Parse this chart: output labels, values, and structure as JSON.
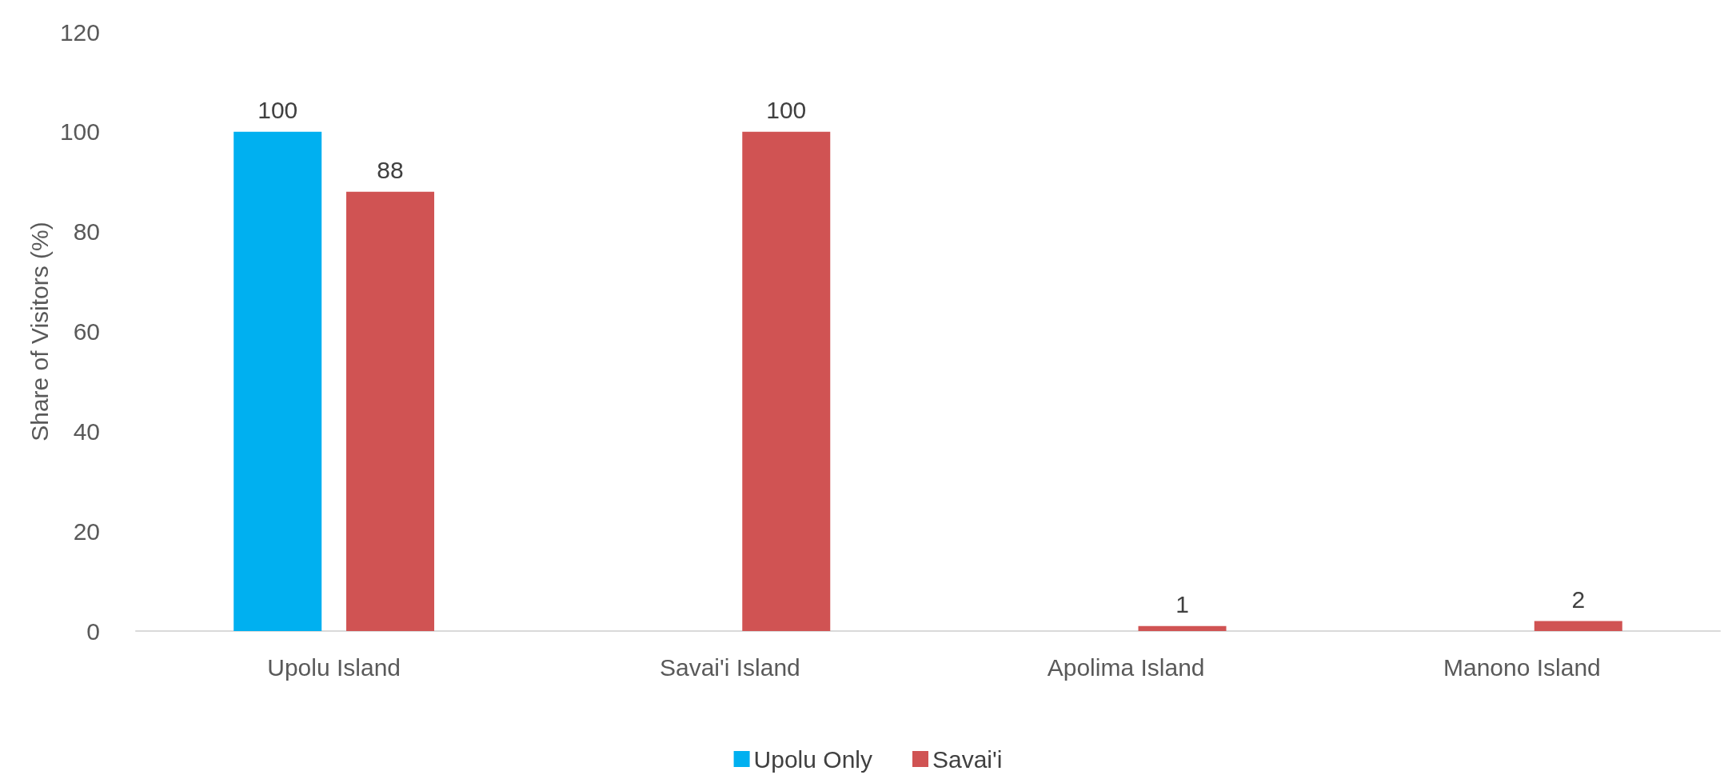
{
  "chart_data": {
    "type": "bar",
    "ylabel": "Share of Visitors (%)",
    "categories": [
      "Upolu Island",
      "Savai'i Island",
      "Apolima Island",
      "Manono Island"
    ],
    "series": [
      {
        "name": "Upolu Only",
        "color": "#00b0f0",
        "values": [
          100,
          null,
          null,
          null
        ]
      },
      {
        "name": "Savai'i",
        "color": "#d05353",
        "values": [
          88,
          100,
          1,
          2
        ]
      }
    ],
    "ylim": [
      0,
      120
    ],
    "yticks": [
      0,
      20,
      40,
      60,
      80,
      100,
      120
    ],
    "grid": false,
    "legend": "bottom",
    "data_labels": true
  }
}
